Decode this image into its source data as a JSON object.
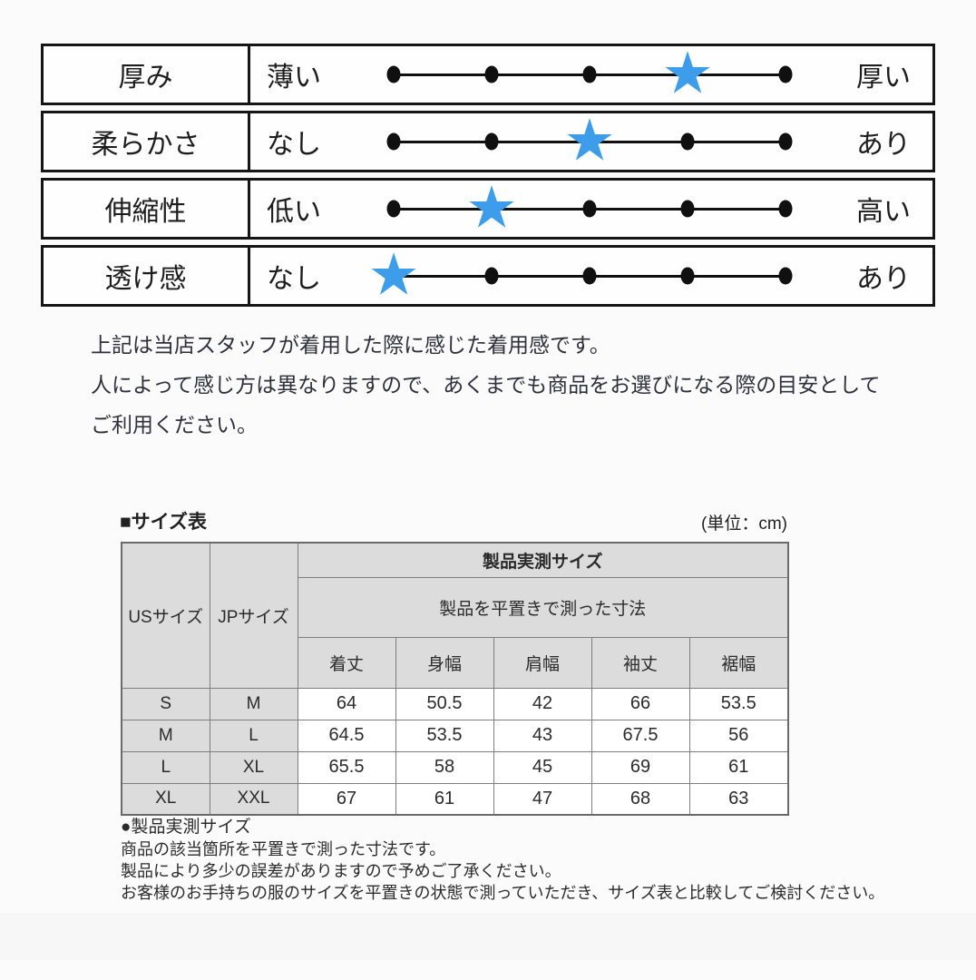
{
  "feel_table": {
    "star_color": "#3d9dea",
    "max_level": 5,
    "rows": [
      {
        "label": "厚み",
        "left": "薄い",
        "right": "厚い",
        "level": 4
      },
      {
        "label": "柔らかさ",
        "left": "なし",
        "right": "あり",
        "level": 3
      },
      {
        "label": "伸縮性",
        "left": "低い",
        "right": "高い",
        "level": 2
      },
      {
        "label": "透け感",
        "left": "なし",
        "right": "あり",
        "level": 1
      }
    ]
  },
  "description": {
    "line1": "上記は当店スタッフが着用した際に感じた着用感です。",
    "line2": "人によって感じ方は異なりますので、あくまでも商品をお選びになる際の目安として",
    "line3": "ご利用ください。"
  },
  "size_section": {
    "heading": "■サイズ表",
    "unit": "(単位：cm)",
    "table": {
      "col_us": "USサイズ",
      "col_jp": "JPサイズ",
      "group_header": "製品実測サイズ",
      "group_subheader": "製品を平置きで測った寸法",
      "measure_headers": [
        "着丈",
        "身幅",
        "肩幅",
        "袖丈",
        "裾幅"
      ],
      "rows": [
        {
          "us": "S",
          "jp": "M",
          "values": [
            "64",
            "50.5",
            "42",
            "66",
            "53.5"
          ]
        },
        {
          "us": "M",
          "jp": "L",
          "values": [
            "64.5",
            "53.5",
            "43",
            "67.5",
            "56"
          ]
        },
        {
          "us": "L",
          "jp": "XL",
          "values": [
            "65.5",
            "58",
            "45",
            "69",
            "61"
          ]
        },
        {
          "us": "XL",
          "jp": "XXL",
          "values": [
            "67",
            "61",
            "47",
            "68",
            "63"
          ]
        }
      ]
    }
  },
  "notes": {
    "heading": "●製品実測サイズ",
    "line1": "商品の該当箇所を平置きで測った寸法です。",
    "line2": "製品により多少の誤差がありますので予めご了承ください。",
    "line3": "お客様のお手持ちの服のサイズを平置きの状態で測っていただき、サイズ表と比較してご検討ください。"
  }
}
